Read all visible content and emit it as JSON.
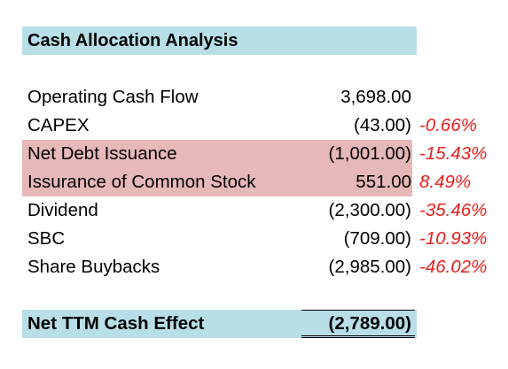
{
  "colors": {
    "header_band": "#b8dfe8",
    "highlight_band": "#e6b8b7",
    "percent_text": "#e8201f"
  },
  "title": "Cash Allocation Analysis",
  "rows": [
    {
      "label": "Operating Cash Flow",
      "value": "3,698.00",
      "pct": ""
    },
    {
      "label": "CAPEX",
      "value": "(43.00)",
      "pct": "-0.66%"
    },
    {
      "label": "Net Debt Issuance",
      "value": "(1,001.00)",
      "pct": "-15.43%"
    },
    {
      "label": "Issurance of Common Stock",
      "value": "551.00",
      "pct": "8.49%"
    },
    {
      "label": "Dividend",
      "value": "(2,300.00)",
      "pct": "-35.46%"
    },
    {
      "label": "SBC",
      "value": "(709.00)",
      "pct": "-10.93%"
    },
    {
      "label": "Share Buybacks",
      "value": "(2,985.00)",
      "pct": "-46.02%"
    }
  ],
  "total": {
    "label": "Net TTM Cash Effect",
    "value": "(2,789.00)"
  }
}
